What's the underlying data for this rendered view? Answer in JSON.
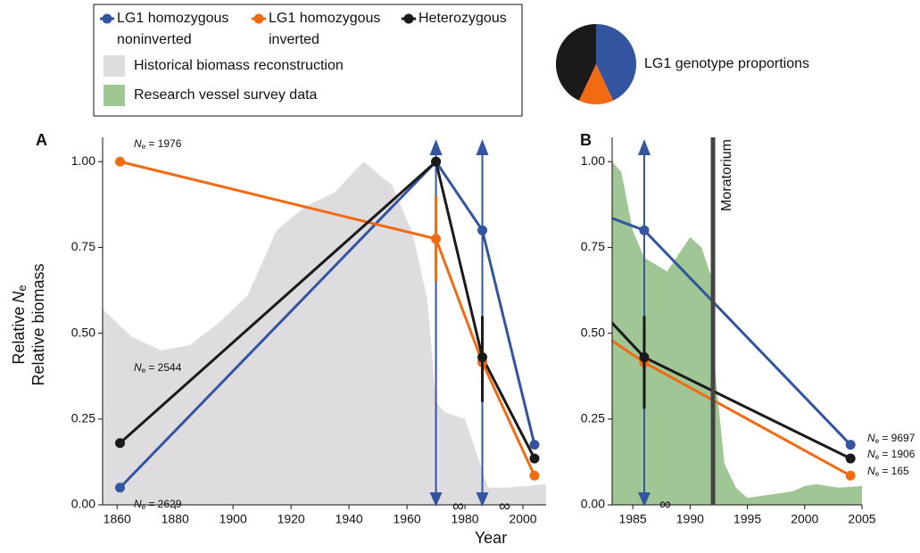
{
  "chart_data": [
    {
      "type": "line",
      "panel_label": "A",
      "xlabel": "Year",
      "ne_label": {
        "prefix": "Relative",
        "symbol": "N",
        "subscript": "e"
      },
      "ylabel": "Relative biomass",
      "xlim": [
        1855,
        2008
      ],
      "ylim": [
        0,
        1.05
      ],
      "xticks": [
        1860,
        1880,
        1900,
        1920,
        1940,
        1960,
        1980,
        2000
      ],
      "yticks": [
        {
          "value": 0,
          "label": "0.00"
        },
        {
          "value": 0.25,
          "label": "0.25"
        },
        {
          "value": 0.5,
          "label": "0.50"
        },
        {
          "value": 0.75,
          "label": "0.75"
        },
        {
          "value": 1,
          "label": "1.00"
        }
      ],
      "x": [
        1861,
        1970,
        1986,
        2004
      ],
      "area": {
        "name": "Historical biomass reconstruction",
        "color": "#dfdcdf",
        "x": [
          1855,
          1865,
          1875,
          1885,
          1895,
          1905,
          1915,
          1925,
          1935,
          1945,
          1955,
          1962,
          1967,
          1970,
          1973,
          1980,
          1988,
          1995,
          2008
        ],
        "values": [
          0.57,
          0.49,
          0.45,
          0.465,
          0.53,
          0.61,
          0.8,
          0.87,
          0.91,
          1.0,
          0.93,
          0.79,
          0.6,
          0.3,
          0.27,
          0.25,
          0.05,
          0.05,
          0.06
        ]
      },
      "series": [
        {
          "name": "LG1 homozygous noninverted",
          "color": "#3355a0",
          "values": [
            0.05,
            1.0,
            0.8,
            0.175
          ],
          "low": [
            null,
            null,
            null,
            null
          ],
          "high": [
            null,
            null,
            null,
            null
          ],
          "infinite_ci": [
            false,
            true,
            true,
            false
          ]
        },
        {
          "name": "LG1 homozygous inverted",
          "color": "#f26b12",
          "values": [
            1.0,
            0.775,
            0.415,
            0.085
          ],
          "low": [
            null,
            0.65,
            0.34,
            null
          ],
          "high": [
            null,
            0.9,
            0.48,
            null
          ],
          "infinite_ci": [
            false,
            false,
            false,
            false
          ]
        },
        {
          "name": "Heterozygous",
          "color": "#1a1a1a",
          "values": [
            0.18,
            1.0,
            0.43,
            0.135
          ],
          "low": [
            null,
            null,
            0.3,
            null
          ],
          "high": [
            null,
            null,
            0.55,
            null
          ],
          "infinite_ci": [
            false,
            false,
            false,
            false
          ]
        }
      ],
      "symbol": "N",
      "subscript": "e",
      "annotations": [
        "= 1976",
        "= 2544",
        "= 2629"
      ],
      "infinity": [
        "∞",
        "∞"
      ]
    },
    {
      "type": "line",
      "panel_label": "B",
      "xlim": [
        1983.2,
        2005
      ],
      "ylim": [
        0,
        1.05
      ],
      "xticks": [
        1985,
        1990,
        1995,
        2000,
        2005
      ],
      "yticks": [
        {
          "value": 0,
          "label": "0.00"
        },
        {
          "value": 0.25,
          "label": "0.25"
        },
        {
          "value": 0.5,
          "label": "0.50"
        },
        {
          "value": 0.75,
          "label": "0.75"
        },
        {
          "value": 1,
          "label": "1.00"
        }
      ],
      "x": [
        1970,
        1986,
        2004
      ],
      "area": {
        "name": "Research vessel survey data",
        "color": "#9fc694",
        "x": [
          1983.2,
          1984,
          1985,
          1986,
          1987,
          1988,
          1989,
          1990,
          1991,
          1991.8,
          1992,
          1993,
          1994,
          1995,
          1997,
          1999,
          2000,
          2001,
          2002,
          2003,
          2005
        ],
        "values": [
          1.0,
          0.97,
          0.8,
          0.72,
          0.7,
          0.68,
          0.73,
          0.78,
          0.75,
          0.67,
          0.45,
          0.12,
          0.05,
          0.02,
          0.03,
          0.04,
          0.055,
          0.06,
          0.055,
          0.05,
          0.055
        ]
      },
      "series": [
        {
          "color": "#3355a0",
          "values": [
            1.0,
            0.8,
            0.175
          ],
          "low": [
            null,
            null,
            null
          ],
          "high": [
            null,
            null,
            null
          ],
          "infinite_ci": [
            false,
            true,
            false
          ]
        },
        {
          "color": "#f26b12",
          "values": [
            0.775,
            0.415,
            0.085
          ],
          "low": [
            null,
            0.35,
            null
          ],
          "high": [
            null,
            0.47,
            null
          ],
          "infinite_ci": [
            false,
            false,
            false
          ]
        },
        {
          "color": "#1a1a1a",
          "values": [
            1.0,
            0.43,
            0.135
          ],
          "low": [
            null,
            0.28,
            null
          ],
          "high": [
            null,
            0.55,
            null
          ],
          "infinite_ci": [
            false,
            false,
            false
          ]
        }
      ],
      "vline": {
        "label": "Moratorium",
        "x": 1992,
        "color": "#444444"
      },
      "symbol": "N",
      "subscript": "e",
      "annotations": [
        "= 9697",
        "= 1906",
        "= 165"
      ],
      "infinity": [
        "∞"
      ]
    },
    {
      "type": "pie",
      "title": "LG1 genotype proportions",
      "values": [
        43,
        14,
        43
      ],
      "colors": [
        "#3355a0",
        "#f26b12",
        "#1a1a1a"
      ]
    }
  ]
}
